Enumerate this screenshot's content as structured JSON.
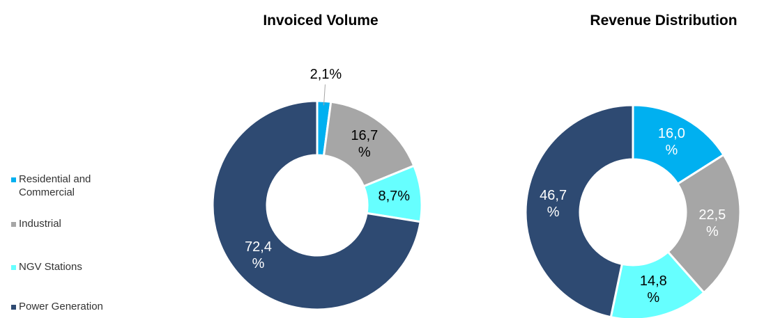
{
  "chart_data": [
    {
      "type": "donut",
      "title": "Invoiced Volume",
      "categories": [
        "Residential and Commercial",
        "Industrial",
        "NGV Stations",
        "Power Generation"
      ],
      "values": [
        2.1,
        16.7,
        8.7,
        72.4
      ],
      "value_labels": [
        "2,1%",
        "16,7 %",
        "8,7%",
        "72,4 %"
      ],
      "colors": [
        "#00b0f0",
        "#a6a6a6",
        "#66ffff",
        "#2e4a72"
      ],
      "label_colors": [
        "#000000",
        "#000000",
        "#000000",
        "#ffffff"
      ]
    },
    {
      "type": "donut",
      "title": "Revenue Distribution",
      "categories": [
        "Residential and Commercial",
        "Industrial",
        "NGV Stations",
        "Power Generation"
      ],
      "values": [
        16.0,
        22.5,
        14.8,
        46.7
      ],
      "value_labels": [
        "16,0 %",
        "22,5 %",
        "14,8 %",
        "46,7 %"
      ],
      "colors": [
        "#00b0f0",
        "#a6a6a6",
        "#66ffff",
        "#2e4a72"
      ],
      "label_colors": [
        "#ffffff",
        "#ffffff",
        "#000000",
        "#ffffff"
      ]
    }
  ]
}
